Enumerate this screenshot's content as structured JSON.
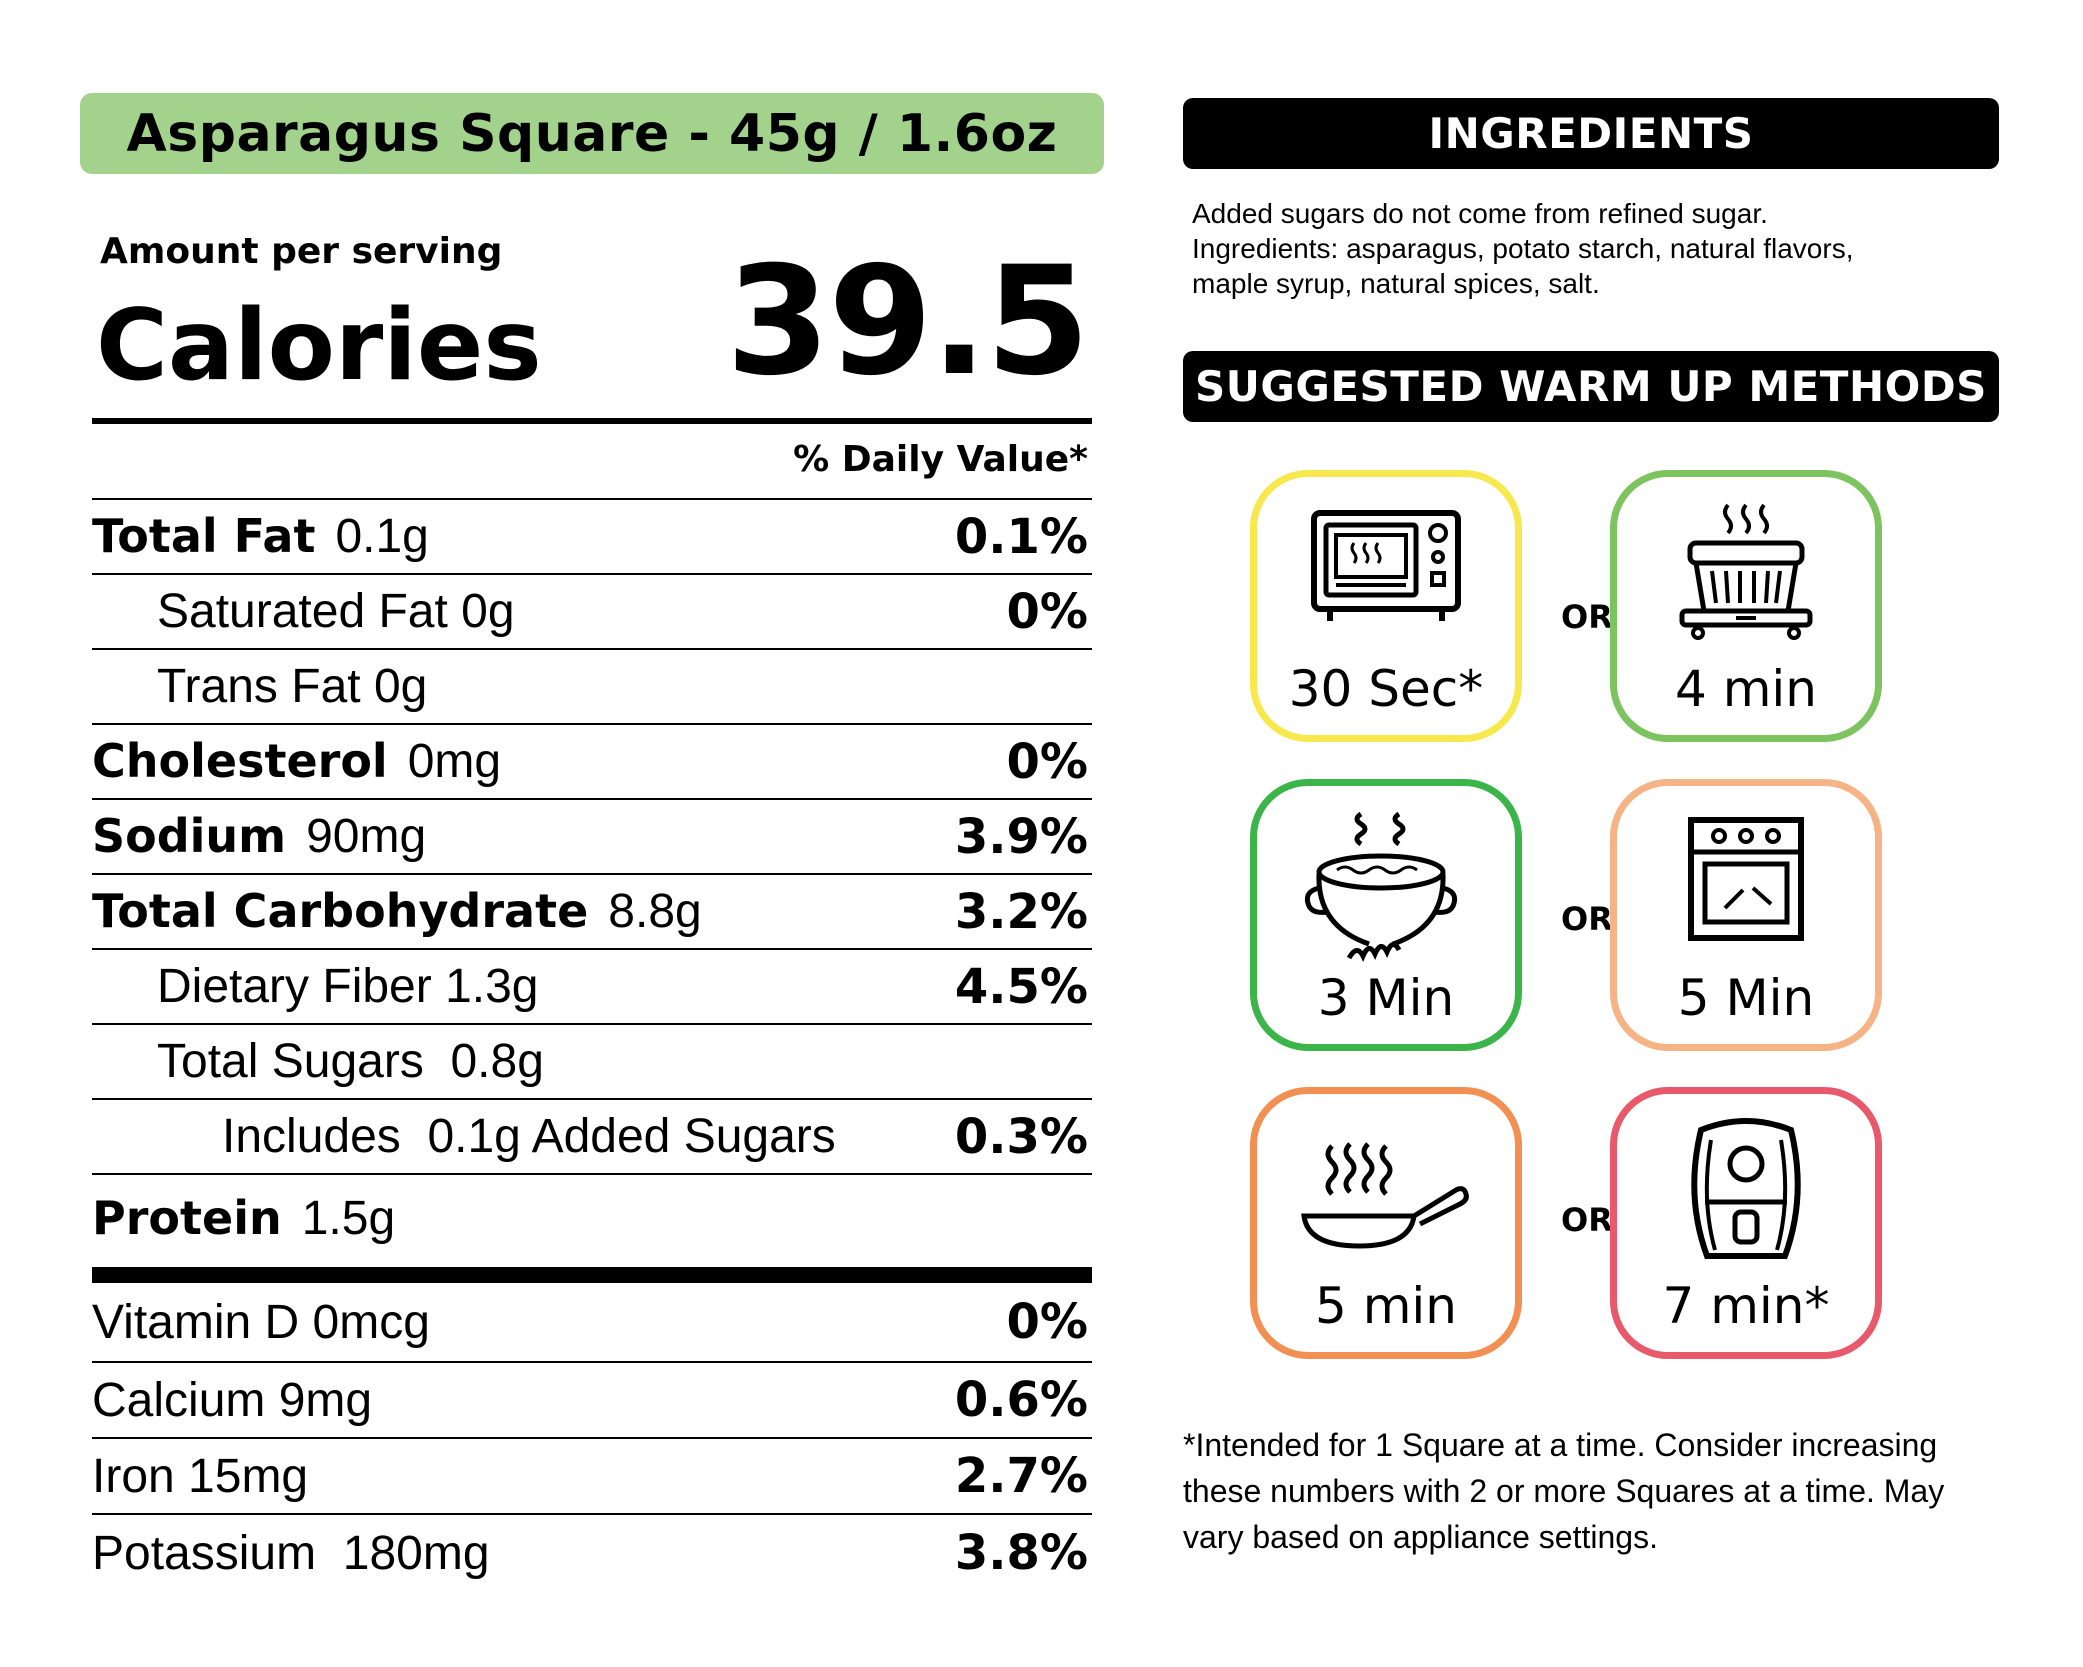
{
  "product": {
    "title": "Asparagus Square - 45g / 1.6oz"
  },
  "nutrition": {
    "amount_per_serving": "Amount per serving",
    "calories_label": "Calories",
    "calories_value": "39.5",
    "daily_value_header": "% Daily Value*",
    "rows": [
      {
        "name": "Total Fat",
        "amount": "0.1g",
        "dv": "0.1%"
      },
      {
        "name": "Saturated Fat 0g",
        "amount": "",
        "dv": "0%"
      },
      {
        "name": "Trans Fat 0g",
        "amount": "",
        "dv": ""
      },
      {
        "name": "Cholesterol",
        "amount": "0mg",
        "dv": "0%"
      },
      {
        "name": "Sodium",
        "amount": "90mg",
        "dv": "3.9%"
      },
      {
        "name": "Total Carbohydrate",
        "amount": "8.8g",
        "dv": "3.2%"
      },
      {
        "name": "Dietary Fiber 1.3g",
        "amount": "",
        "dv": "4.5%"
      },
      {
        "name": "Total Sugars  0.8g",
        "amount": "",
        "dv": ""
      },
      {
        "name": "Includes  0.1g Added Sugars",
        "amount": "",
        "dv": "0.3%"
      },
      {
        "name": "Protein",
        "amount": "1.5g",
        "dv": ""
      }
    ],
    "vitamins": [
      {
        "name": "Vitamin D 0mcg",
        "dv": "0%"
      },
      {
        "name": "Calcium 9mg",
        "dv": "0.6%"
      },
      {
        "name": "Iron 15mg",
        "dv": "2.7%"
      },
      {
        "name": "Potassium  180mg",
        "dv": "3.8%"
      }
    ]
  },
  "ingredients": {
    "header": "INGREDIENTS",
    "lines": [
      "Added sugars do not come from refined sugar.",
      "Ingredients: asparagus, potato starch, natural flavors,",
      "maple syrup, natural spices, salt."
    ]
  },
  "warm_up": {
    "header": "SUGGESTED WARM UP METHODS",
    "or_label": "OR",
    "methods": [
      {
        "icon": "microwave-icon",
        "time": "30 Sec*",
        "color": "#f7e84e"
      },
      {
        "icon": "steamer-icon",
        "time": "4 min",
        "color": "#7dc35f"
      },
      {
        "icon": "boiling-pot-icon",
        "time": "3 Min",
        "color": "#3bb54a"
      },
      {
        "icon": "oven-icon",
        "time": "5 Min",
        "color": "#f5b386"
      },
      {
        "icon": "frying-pan-icon",
        "time": "5 min",
        "color": "#f28f52"
      },
      {
        "icon": "air-fryer-icon",
        "time": "7 min*",
        "color": "#e85a6b"
      }
    ],
    "footnote_lines": [
      "*Intended for 1 Square at a time. Consider increasing",
      "these numbers with 2 or more Squares at a time. May",
      "vary based on appliance settings."
    ]
  },
  "colors": {
    "banner_green": "#a3d28c",
    "section_bar": "#000000"
  }
}
